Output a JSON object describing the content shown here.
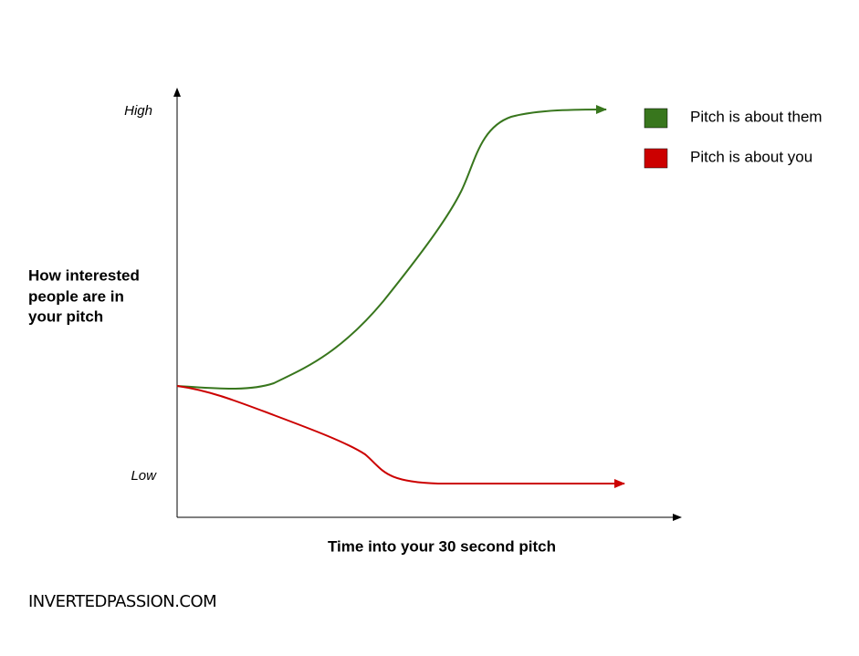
{
  "axes": {
    "y_high": "High",
    "y_low": "Low",
    "y_label": [
      "How interested",
      "people are in",
      "your pitch"
    ],
    "x_label": "Time into your 30 second pitch"
  },
  "legend": [
    {
      "label": "Pitch is about them",
      "color": "#38761d"
    },
    {
      "label": "Pitch is about you",
      "color": "#cc0000"
    }
  ],
  "footer": "INVERTEDPASSION.COM"
}
